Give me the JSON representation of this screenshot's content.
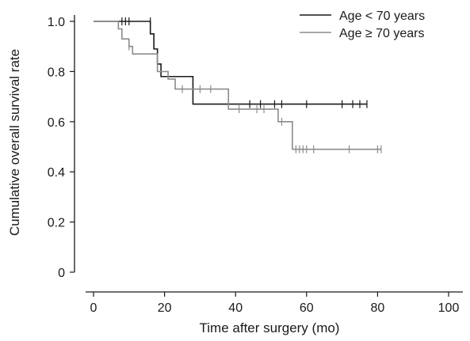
{
  "chart_data": {
    "type": "line",
    "xlabel": "Time after surgery (mo)",
    "ylabel": "Cumulative overall survival rate",
    "xlim": [
      0,
      100
    ],
    "ylim": [
      0,
      1.0
    ],
    "x_ticks": [
      0,
      20,
      40,
      60,
      80,
      100
    ],
    "y_ticks": [
      0,
      0.2,
      0.4,
      0.6,
      0.8,
      1.0
    ],
    "x_tick_labels": [
      "0",
      "20",
      "40",
      "60",
      "80",
      "100"
    ],
    "y_tick_labels": [
      "0",
      "0.2",
      "0.4",
      "0.6",
      "0.8",
      "1.0"
    ],
    "grid": false,
    "legend_position": "top-right",
    "series": [
      {
        "name": "Age < 70 years",
        "color": "#1a1a1a",
        "step_x": [
          0,
          16,
          17,
          18,
          19,
          20,
          28,
          29,
          80
        ],
        "step_y": [
          1.0,
          0.95,
          0.89,
          0.83,
          0.78,
          0.78,
          0.67,
          0.67,
          0.67
        ],
        "end_x": 77,
        "censored": [
          {
            "x": 8,
            "y": 1.0
          },
          {
            "x": 9,
            "y": 1.0
          },
          {
            "x": 10,
            "y": 1.0
          },
          {
            "x": 16,
            "y": 1.0
          },
          {
            "x": 44,
            "y": 0.67
          },
          {
            "x": 47,
            "y": 0.67
          },
          {
            "x": 51,
            "y": 0.67
          },
          {
            "x": 53,
            "y": 0.67
          },
          {
            "x": 60,
            "y": 0.67
          },
          {
            "x": 70,
            "y": 0.67
          },
          {
            "x": 73,
            "y": 0.67
          },
          {
            "x": 75,
            "y": 0.67
          },
          {
            "x": 77,
            "y": 0.67
          }
        ]
      },
      {
        "name": "Age ≥ 70 years",
        "color": "#8c8c8c",
        "step_x": [
          0,
          7,
          8,
          9,
          10,
          11,
          18,
          21,
          23,
          38,
          52,
          53,
          56
        ],
        "step_y": [
          1.0,
          0.97,
          0.93,
          0.93,
          0.9,
          0.87,
          0.8,
          0.77,
          0.73,
          0.65,
          0.6,
          0.6,
          0.49
        ],
        "end_x": 81,
        "censored": [
          {
            "x": 10,
            "y": 0.9
          },
          {
            "x": 25,
            "y": 0.73
          },
          {
            "x": 30,
            "y": 0.73
          },
          {
            "x": 33,
            "y": 0.73
          },
          {
            "x": 41,
            "y": 0.65
          },
          {
            "x": 46,
            "y": 0.65
          },
          {
            "x": 48,
            "y": 0.65
          },
          {
            "x": 53,
            "y": 0.6
          },
          {
            "x": 57,
            "y": 0.49
          },
          {
            "x": 58,
            "y": 0.49
          },
          {
            "x": 59,
            "y": 0.49
          },
          {
            "x": 60,
            "y": 0.49
          },
          {
            "x": 62,
            "y": 0.49
          },
          {
            "x": 72,
            "y": 0.49
          },
          {
            "x": 80,
            "y": 0.49
          },
          {
            "x": 81,
            "y": 0.49
          }
        ]
      }
    ]
  }
}
